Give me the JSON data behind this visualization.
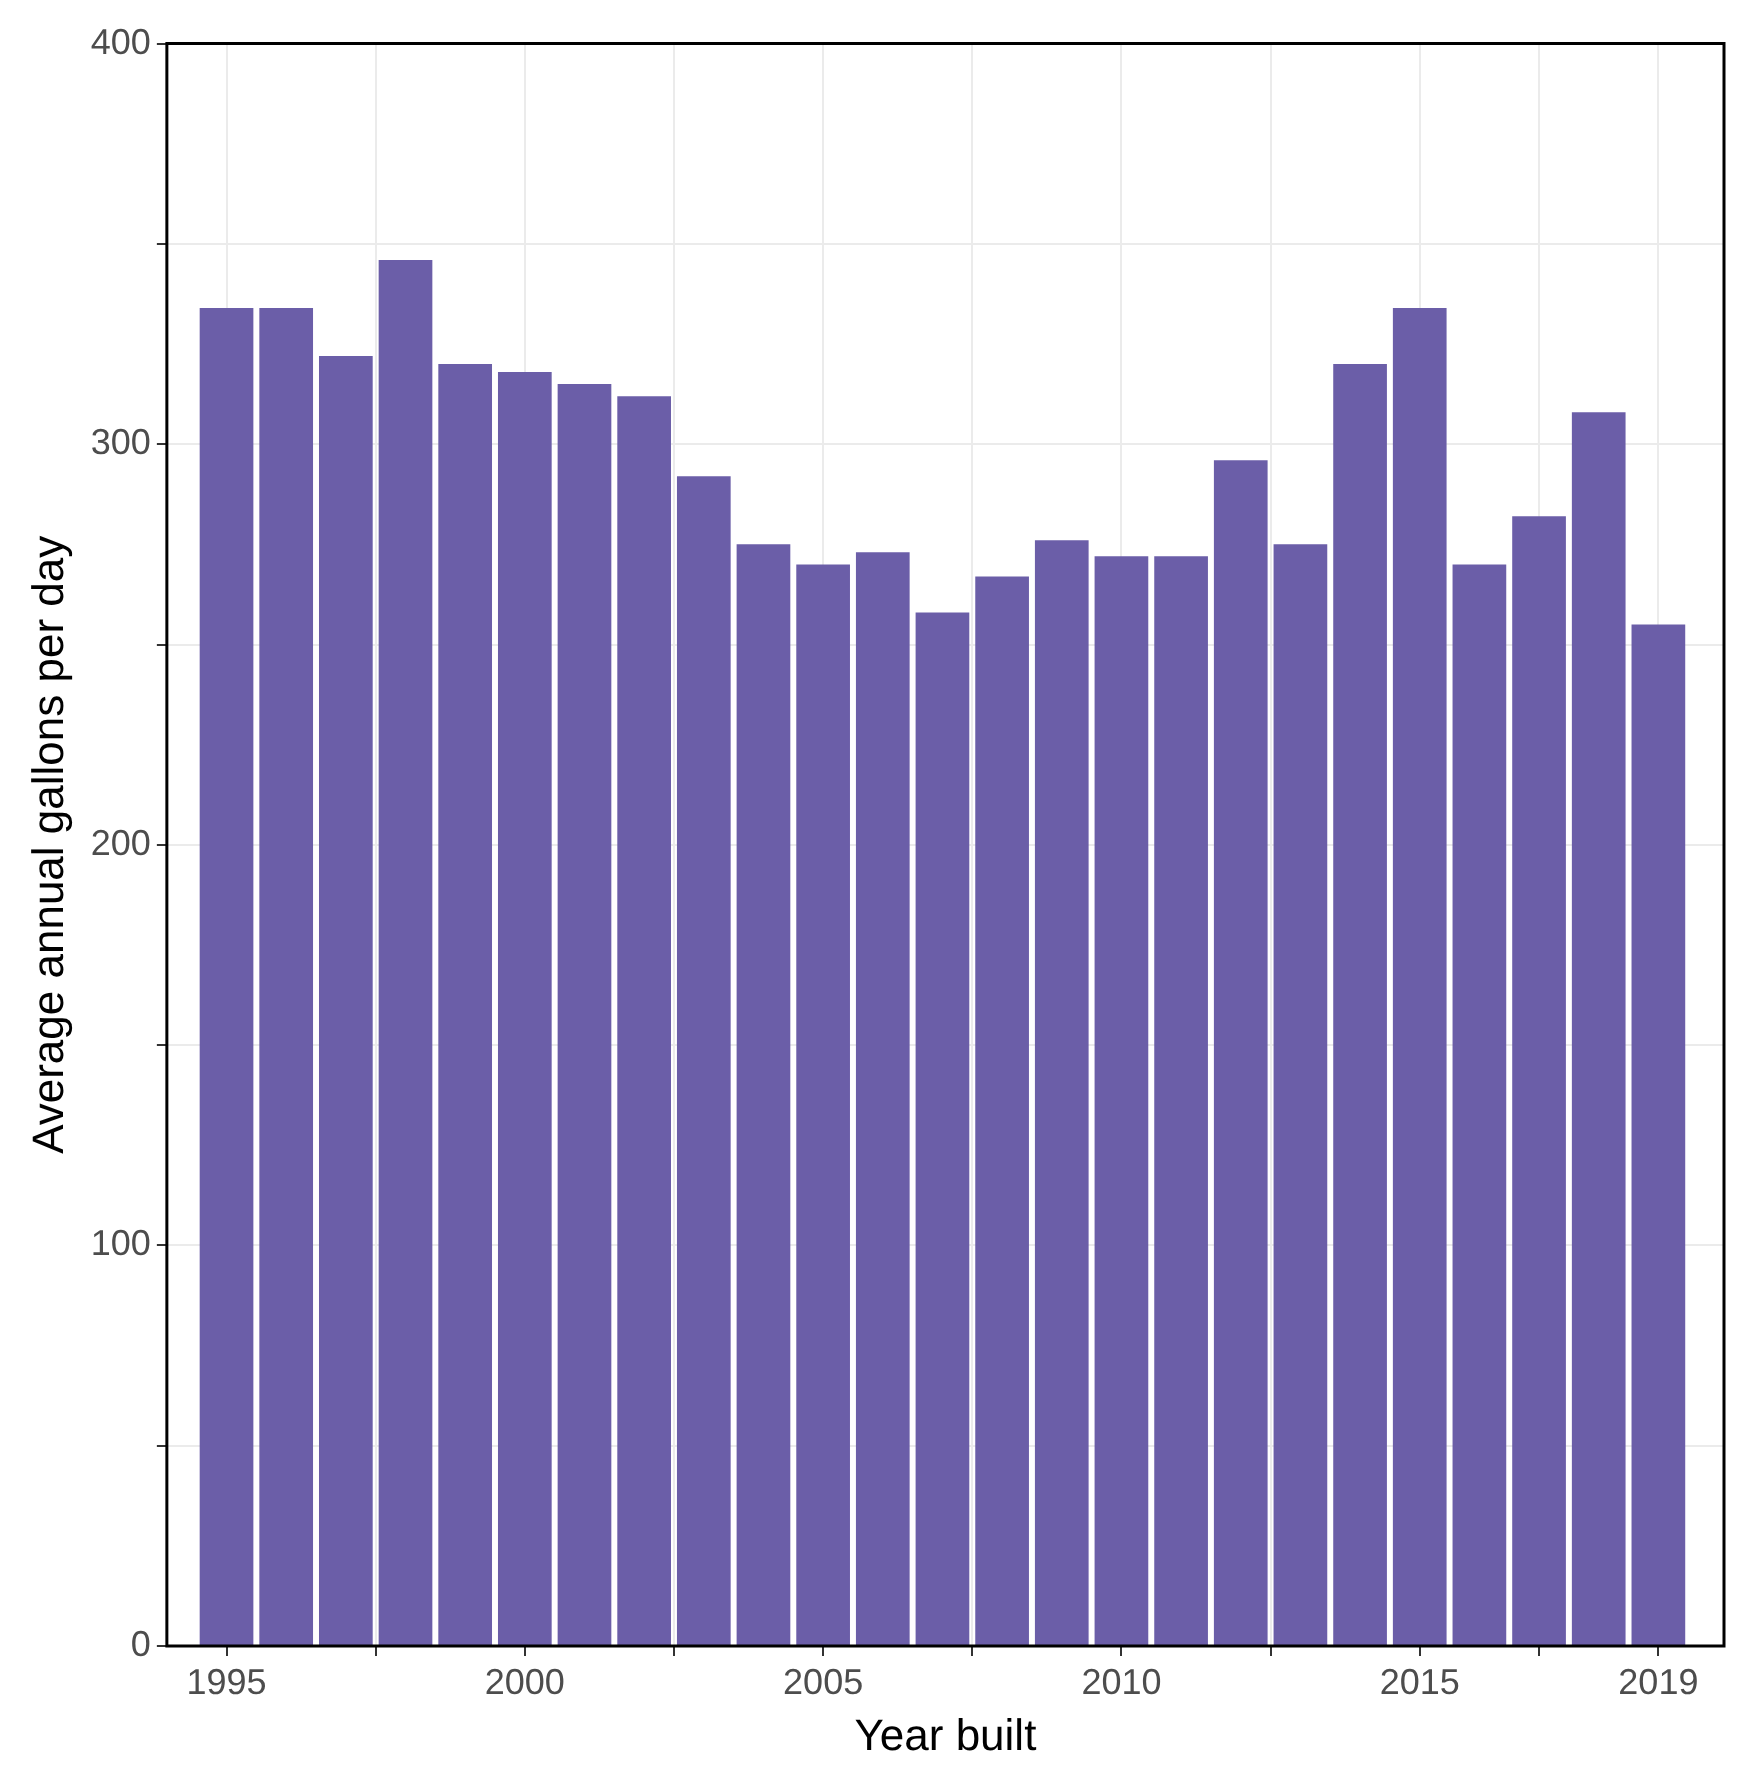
{
  "chart_data": {
    "type": "bar",
    "xlabel": "Year built",
    "ylabel": "Average annual gallons per day",
    "x": [
      1995,
      1996,
      1997,
      1998,
      1999,
      2000,
      2001,
      2002,
      2003,
      2004,
      2005,
      2006,
      2007,
      2008,
      2009,
      2010,
      2011,
      2012,
      2013,
      2014,
      2015,
      2016,
      2017,
      2018,
      2019
    ],
    "values": [
      334,
      334,
      322,
      346,
      320,
      318,
      315,
      312,
      292,
      275,
      270,
      273,
      258,
      267,
      276,
      272,
      272,
      296,
      275,
      320,
      334,
      270,
      282,
      308,
      255
    ],
    "color": "#6b5ea8",
    "xlim": [
      1994,
      2020.1
    ],
    "xticks": [
      1995,
      {
        "value": 1997.5,
        "label": null
      },
      2000,
      {
        "value": 2002.5,
        "label": null
      },
      2005,
      {
        "value": 2007.5,
        "label": null
      },
      2010,
      {
        "value": 2012.5,
        "label": null
      },
      2015,
      {
        "value": 2017,
        "label": null
      },
      2019
    ],
    "ylim": [
      0,
      400
    ],
    "yticks": [
      0,
      {
        "value": 50,
        "label": null
      },
      100,
      {
        "value": 150,
        "label": null
      },
      200,
      {
        "value": 250,
        "label": null
      },
      300,
      {
        "value": 350,
        "label": null
      },
      400
    ],
    "grid": true
  }
}
